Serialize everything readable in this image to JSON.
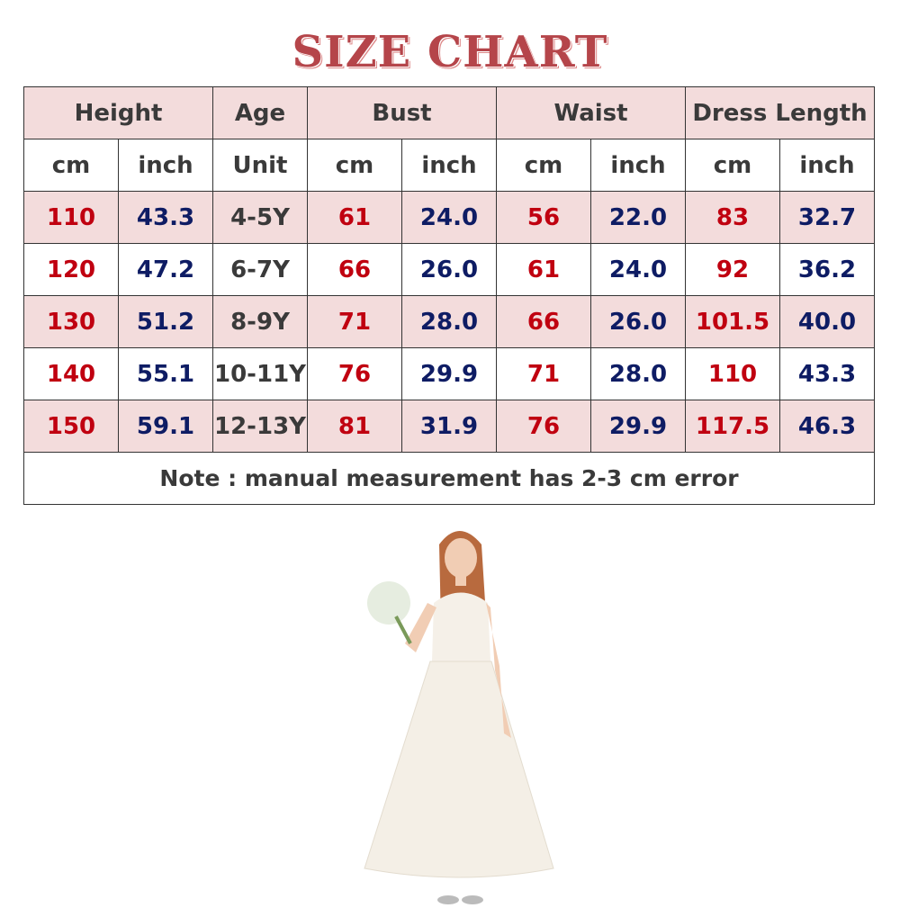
{
  "title": "SIZE CHART",
  "headers": [
    "Height",
    "Age",
    "Bust",
    "Waist",
    "Dress Length"
  ],
  "units": [
    "cm",
    "inch",
    "Unit",
    "cm",
    "inch",
    "cm",
    "inch",
    "cm",
    "inch"
  ],
  "rows": [
    [
      "110",
      "43.3",
      "4-5Y",
      "61",
      "24.0",
      "56",
      "22.0",
      "83",
      "32.7"
    ],
    [
      "120",
      "47.2",
      "6-7Y",
      "66",
      "26.0",
      "61",
      "24.0",
      "92",
      "36.2"
    ],
    [
      "130",
      "51.2",
      "8-9Y",
      "71",
      "28.0",
      "66",
      "26.0",
      "101.5",
      "40.0"
    ],
    [
      "140",
      "55.1",
      "10-11Y",
      "76",
      "29.9",
      "71",
      "28.0",
      "110",
      "43.3"
    ],
    [
      "150",
      "59.1",
      "12-13Y",
      "81",
      "31.9",
      "76",
      "29.9",
      "117.5",
      "46.3"
    ]
  ],
  "note": "Note : manual measurement has 2-3 cm error",
  "colors": {
    "title": "#b5454a",
    "header_bg": "#f3dcdc",
    "cm_values": "#c00010",
    "inch_values": "#0e1c64"
  }
}
